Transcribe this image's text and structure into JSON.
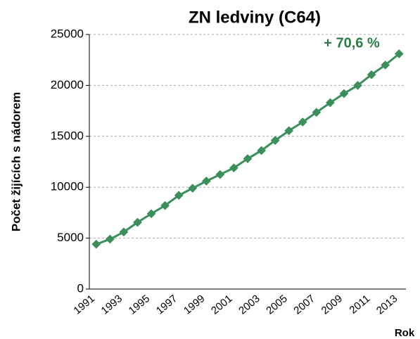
{
  "chart_data": {
    "type": "line",
    "title": "ZN ledviny (C64)",
    "y_label": "Počet žijících s nádorem",
    "x_label": "Rok",
    "annotation": "+ 70,6 %",
    "categories": [
      "1991",
      null,
      "1993",
      null,
      "1995",
      null,
      "1997",
      null,
      "1999",
      null,
      "2001",
      null,
      "2003",
      null,
      "2005",
      null,
      "2007",
      null,
      "2009",
      null,
      "2011",
      null,
      "2013"
    ],
    "series": [
      {
        "name": "ZN ledviny (C64)",
        "color": "#3a8f5a",
        "values": [
          4400,
          4900,
          5600,
          6550,
          7400,
          8200,
          9200,
          9900,
          10600,
          11250,
          11900,
          12800,
          13600,
          14600,
          15550,
          16400,
          17350,
          18300,
          19200,
          20000,
          21050,
          22000,
          23100
        ]
      }
    ],
    "ylim": [
      0,
      25000
    ],
    "yticks": [
      0,
      5000,
      10000,
      15000,
      20000,
      25000
    ],
    "grid": true
  }
}
